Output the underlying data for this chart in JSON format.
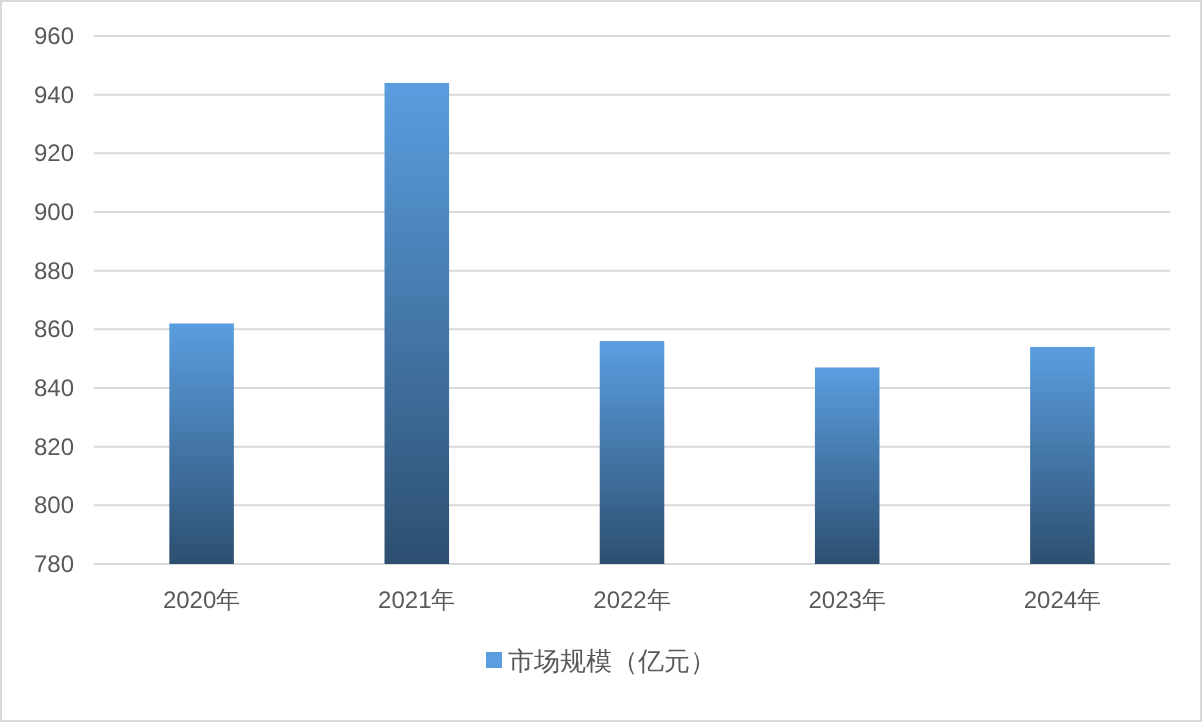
{
  "chart_data": {
    "type": "bar",
    "categories": [
      "2020年",
      "2021年",
      "2022年",
      "2023年",
      "2024年"
    ],
    "series": [
      {
        "name": "市场规模（亿元）",
        "color": "#5a9ee0",
        "values": [
          862,
          944,
          856,
          847,
          854
        ]
      }
    ],
    "ylim": [
      780,
      960
    ],
    "yticks": [
      780,
      800,
      820,
      840,
      860,
      880,
      900,
      920,
      940,
      960
    ],
    "grid": "y",
    "legend": "bottom"
  }
}
